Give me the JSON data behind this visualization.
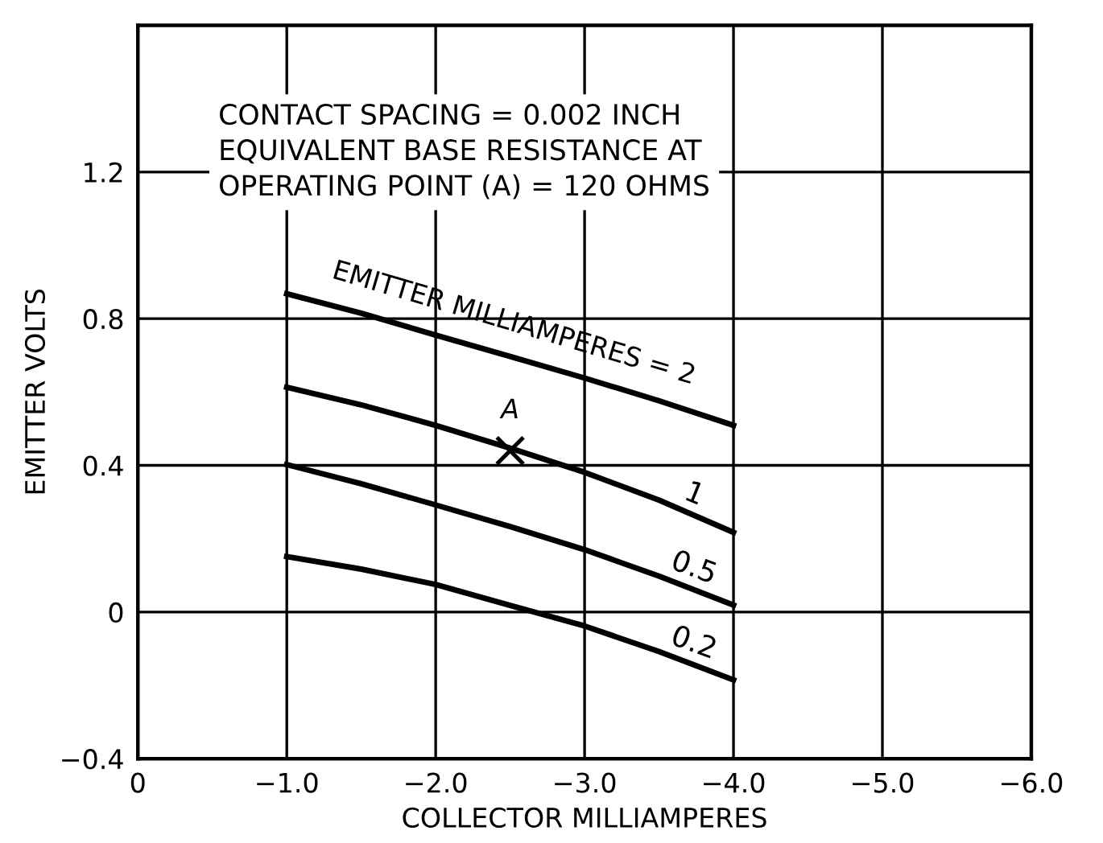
{
  "chart_data": {
    "type": "line",
    "xlabel": "COLLECTOR MILLIAMPERES",
    "ylabel": "EMITTER VOLTS",
    "annotations": [
      "CONTACT SPACING = 0.002 INCH\nEQUIVALENT BASE RESISTANCE AT\nOPERATING POINT (A) = 120 OHMS",
      {
        "text": "A",
        "x": -2.5,
        "y": 0.44
      }
    ],
    "x": [
      -1.0,
      -1.5,
      -2.0,
      -2.5,
      -3.0,
      -3.5,
      -4.0
    ],
    "series": [
      {
        "name": "EMITTER MILLIAMPERES = 2",
        "color": "#000000",
        "values": [
          0.868,
          0.815,
          0.755,
          0.697,
          0.638,
          0.576,
          0.509
        ]
      },
      {
        "name": "1",
        "color": "#000000",
        "values": [
          0.613,
          0.565,
          0.509,
          0.447,
          0.381,
          0.305,
          0.217
        ]
      },
      {
        "name": "0.5",
        "color": "#000000",
        "values": [
          0.402,
          0.35,
          0.292,
          0.233,
          0.17,
          0.098,
          0.019
        ]
      },
      {
        "name": "0.2",
        "color": "#000000",
        "values": [
          0.151,
          0.117,
          0.075,
          0.018,
          -0.038,
          -0.108,
          -0.185
        ]
      },
      {
        "type": "scatter",
        "color": "#000000",
        "marker": "cross",
        "x": [
          -2.5
        ],
        "values": [
          0.44
        ]
      }
    ],
    "xlim": [
      0,
      -6.0
    ],
    "ylim": [
      -0.4,
      1.6
    ],
    "xticks": [
      0,
      {
        "value": -1.0,
        "label": "−1.0"
      },
      {
        "value": -2.0,
        "label": "−2.0"
      },
      {
        "value": -3.0,
        "label": "−3.0"
      },
      {
        "value": -4.0,
        "label": "−4.0"
      },
      {
        "value": -5.0,
        "label": "−5.0"
      },
      {
        "value": -6.0,
        "label": "−6.0"
      }
    ],
    "yticks": [
      {
        "value": -0.4,
        "label": "−0.4"
      },
      0,
      0.4,
      0.8,
      1.2
    ],
    "grid": true,
    "legend": false
  }
}
